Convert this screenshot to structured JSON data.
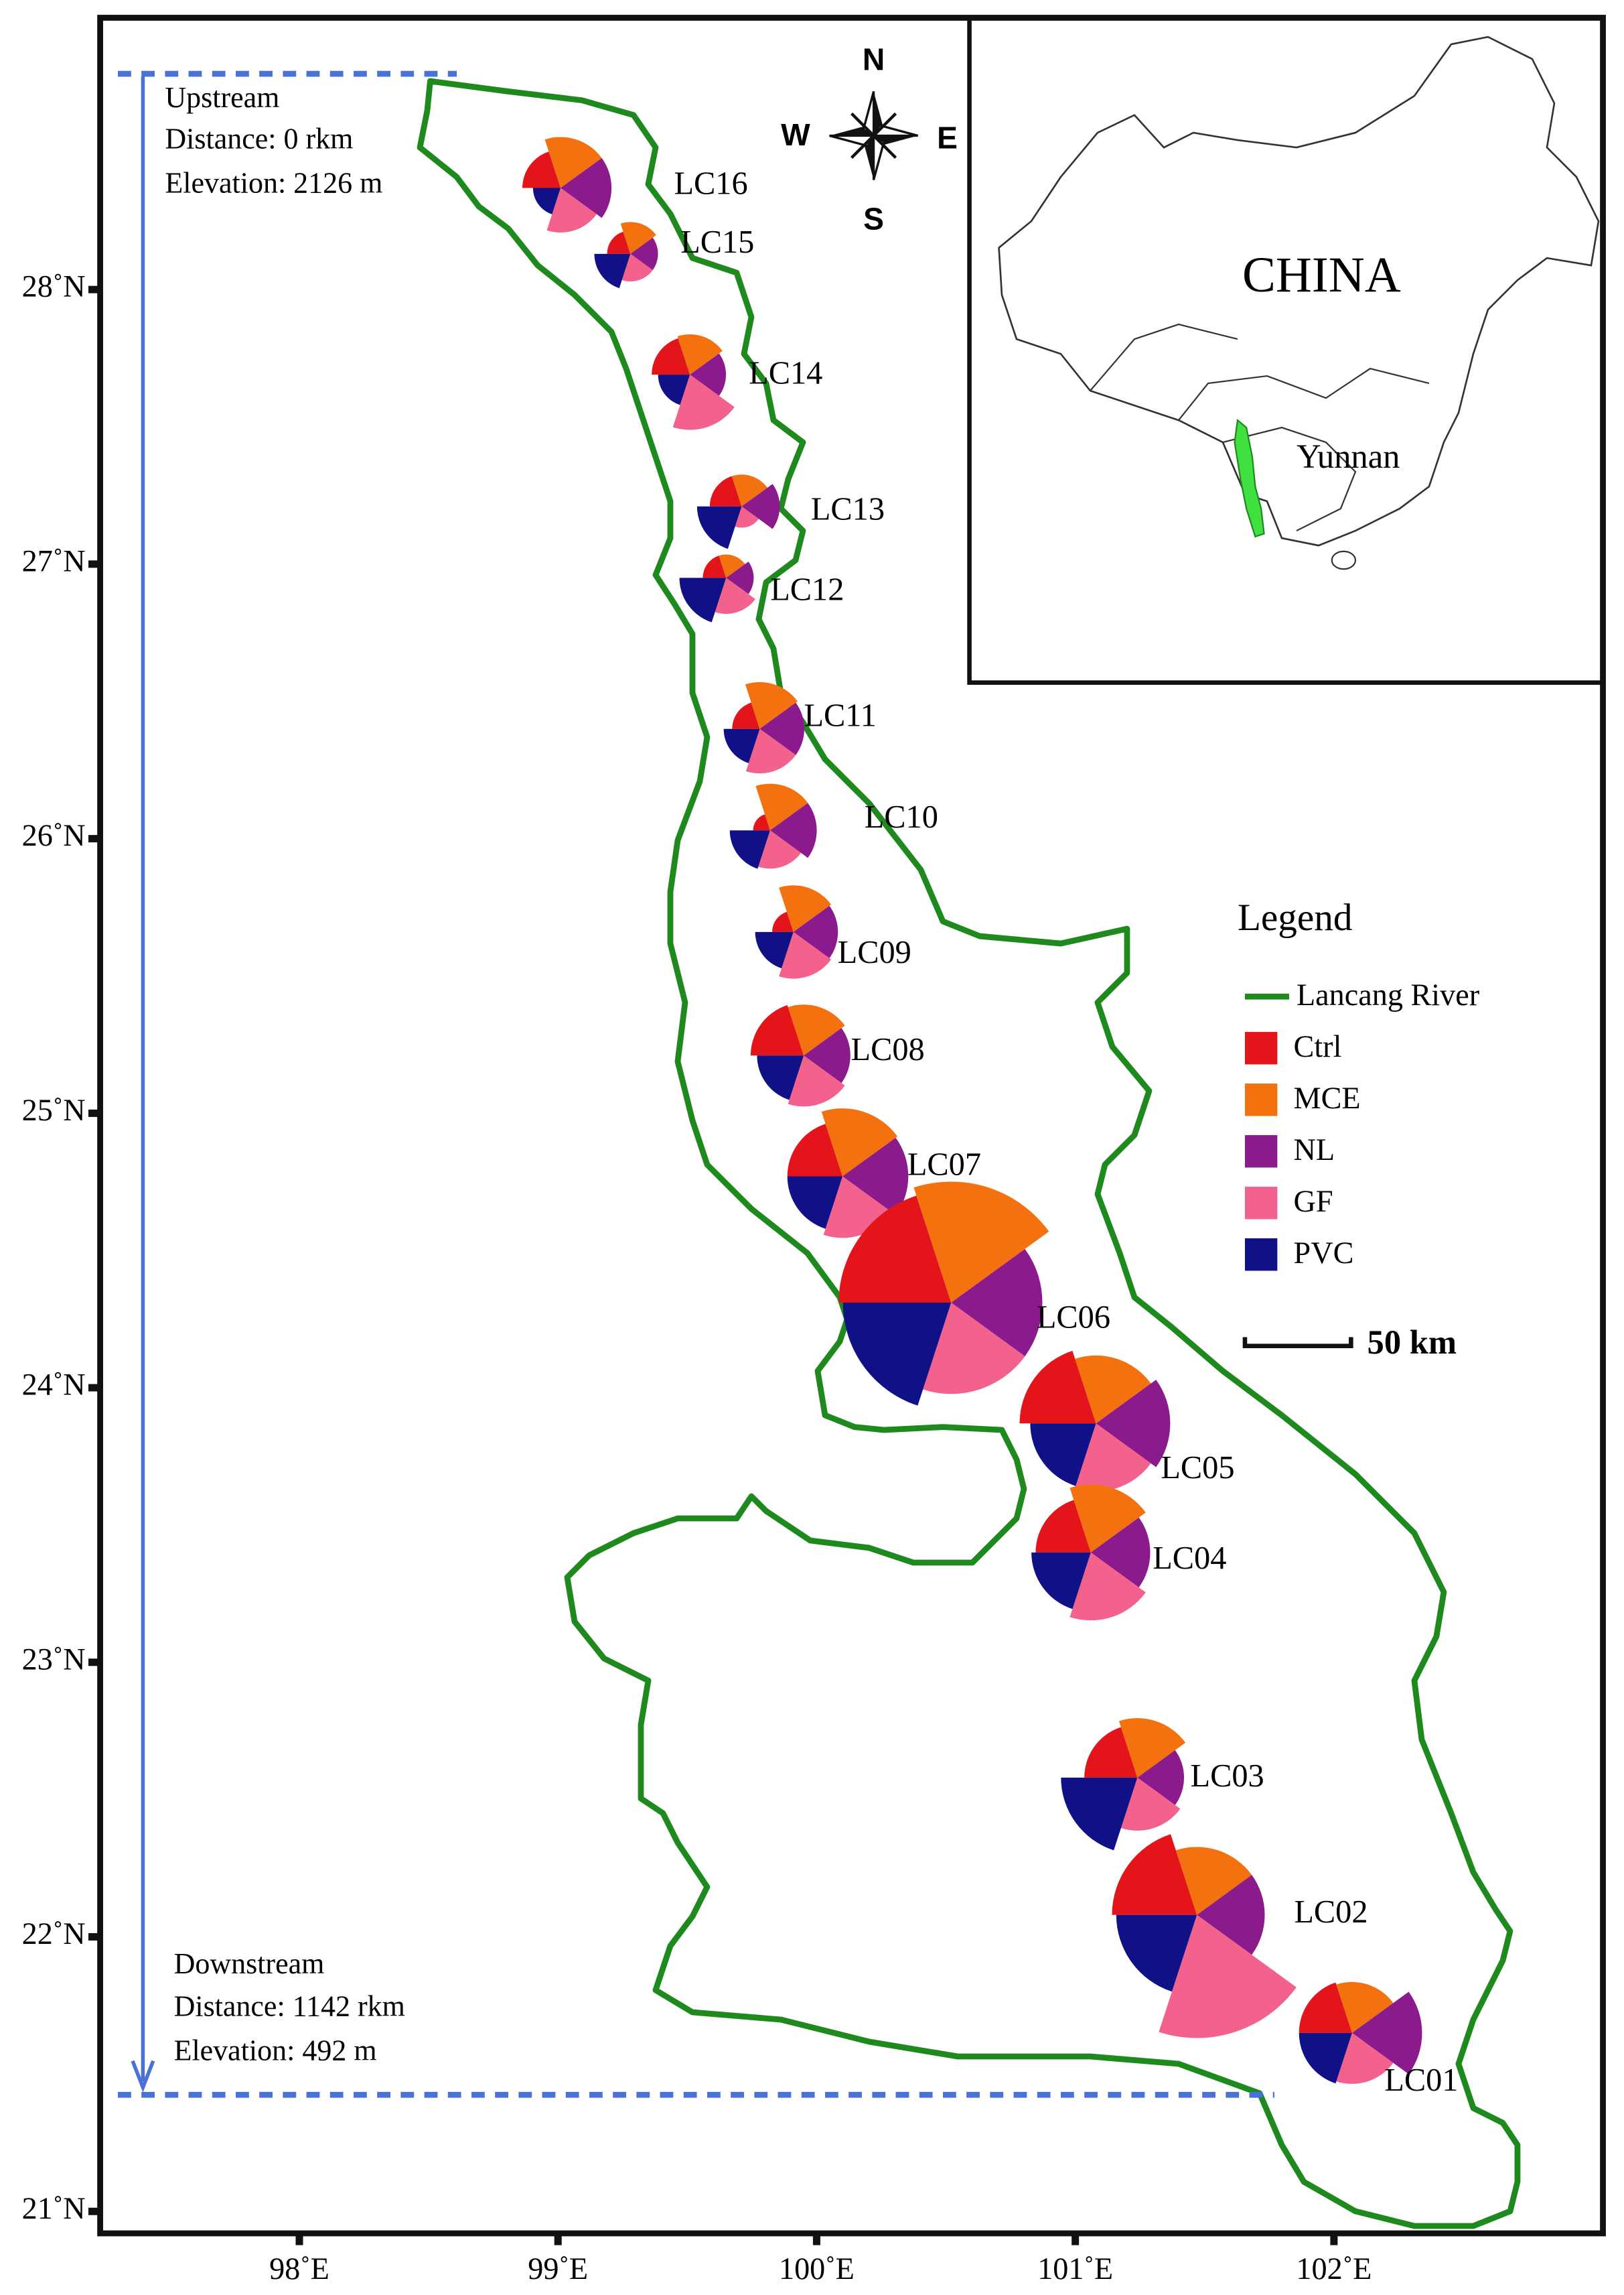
{
  "map": {
    "xlim": [
      97.23,
      103.04
    ],
    "ylim": [
      20.92,
      28.99
    ],
    "xticks": [
      {
        "value": 98,
        "label": "98˚E"
      },
      {
        "value": 99,
        "label": "99˚E"
      },
      {
        "value": 100,
        "label": "100˚E"
      },
      {
        "value": 101,
        "label": "101˚E"
      },
      {
        "value": 102,
        "label": "102˚E"
      }
    ],
    "yticks": [
      {
        "value": 21,
        "label": "21˚N"
      },
      {
        "value": 22,
        "label": "22˚N"
      },
      {
        "value": 23,
        "label": "23˚N"
      },
      {
        "value": 24,
        "label": "24˚N"
      },
      {
        "value": 25,
        "label": "25˚N"
      },
      {
        "value": 26,
        "label": "26˚N"
      },
      {
        "value": 27,
        "label": "27˚N"
      },
      {
        "value": 28,
        "label": "28˚N"
      }
    ],
    "upstream": [
      "Upstream",
      "Distance:  0 rkm",
      "Elevation: 2126 m"
    ],
    "downstream": [
      "Downstream",
      "Distance:  1142 rkm",
      "Elevation: 492 m"
    ],
    "compass": {
      "n": "N",
      "e": "E",
      "s": "S",
      "w": "W"
    },
    "inset": {
      "country": "CHINA",
      "province": "Yunnan"
    },
    "legend": {
      "title": "Legend",
      "river": "Lancang River"
    },
    "series": [
      {
        "name": "Ctrl",
        "color": "#e3151b"
      },
      {
        "name": "MCE",
        "color": "#f4710f"
      },
      {
        "name": "NL",
        "color": "#8b1a8c"
      },
      {
        "name": "GF",
        "color": "#f2628c"
      },
      {
        "name": "PVC",
        "color": "#101087"
      }
    ],
    "scale_bar": {
      "value": 50,
      "label": "50 km"
    },
    "sites": [
      {
        "name": "LC16",
        "lon": 99.01,
        "lat": 28.37,
        "values": [
          18,
          24,
          24,
          21,
          13
        ]
      },
      {
        "name": "LC15",
        "lon": 99.28,
        "lat": 28.13,
        "values": [
          11,
          15,
          13,
          13,
          17
        ]
      },
      {
        "name": "LC14",
        "lon": 99.51,
        "lat": 27.69,
        "values": [
          18,
          19,
          17,
          26,
          15
        ]
      },
      {
        "name": "LC13",
        "lon": 99.71,
        "lat": 27.21,
        "values": [
          15,
          15,
          18,
          10,
          21
        ]
      },
      {
        "name": "LC12",
        "lon": 99.65,
        "lat": 26.95,
        "values": [
          11,
          11,
          13,
          17,
          22
        ]
      },
      {
        "name": "LC11",
        "lon": 99.78,
        "lat": 26.4,
        "values": [
          13,
          22,
          21,
          21,
          17
        ]
      },
      {
        "name": "LC10",
        "lon": 99.82,
        "lat": 26.03,
        "values": [
          8,
          22,
          22,
          18,
          19
        ]
      },
      {
        "name": "LC09",
        "lon": 99.91,
        "lat": 25.66,
        "values": [
          10,
          22,
          21,
          22,
          18
        ]
      },
      {
        "name": "LC08",
        "lon": 99.95,
        "lat": 25.21,
        "values": [
          25,
          24,
          22,
          24,
          22
        ]
      },
      {
        "name": "LC07",
        "lon": 100.1,
        "lat": 24.77,
        "values": [
          26,
          32,
          31,
          29,
          26
        ]
      },
      {
        "name": "LC06",
        "lon": 100.52,
        "lat": 24.31,
        "values": [
          53,
          57,
          43,
          43,
          51
        ]
      },
      {
        "name": "LC05",
        "lon": 101.08,
        "lat": 23.87,
        "values": [
          36,
          32,
          35,
          32,
          31
        ]
      },
      {
        "name": "LC04",
        "lon": 101.06,
        "lat": 23.4,
        "values": [
          26,
          32,
          28,
          32,
          28
        ]
      },
      {
        "name": "LC03",
        "lon": 101.24,
        "lat": 22.58,
        "values": [
          25,
          28,
          22,
          25,
          36
        ]
      },
      {
        "name": "LC02",
        "lon": 101.47,
        "lat": 22.08,
        "values": [
          40,
          32,
          32,
          58,
          38
        ]
      },
      {
        "name": "LC01",
        "lon": 102.07,
        "lat": 21.65,
        "values": [
          25,
          24,
          33,
          24,
          25
        ]
      }
    ]
  }
}
